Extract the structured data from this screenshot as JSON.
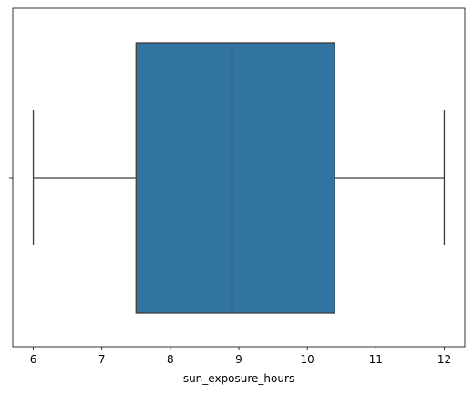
{
  "chart_data": {
    "type": "box",
    "orientation": "horizontal",
    "xlabel": "sun_exposure_hours",
    "ylabel": "",
    "xlim": [
      5.7,
      12.3
    ],
    "x_ticks": [
      6,
      7,
      8,
      9,
      10,
      11,
      12
    ],
    "tick_labels": [
      "6",
      "7",
      "8",
      "9",
      "10",
      "11",
      "12"
    ],
    "box": {
      "min": 6.0,
      "q1": 7.5,
      "median": 8.9,
      "q3": 10.4,
      "max": 12.0
    },
    "grid": false,
    "colors": {
      "box_fill": "#3274a1",
      "lines": "#3d3d3d",
      "axes": "#000000"
    }
  }
}
